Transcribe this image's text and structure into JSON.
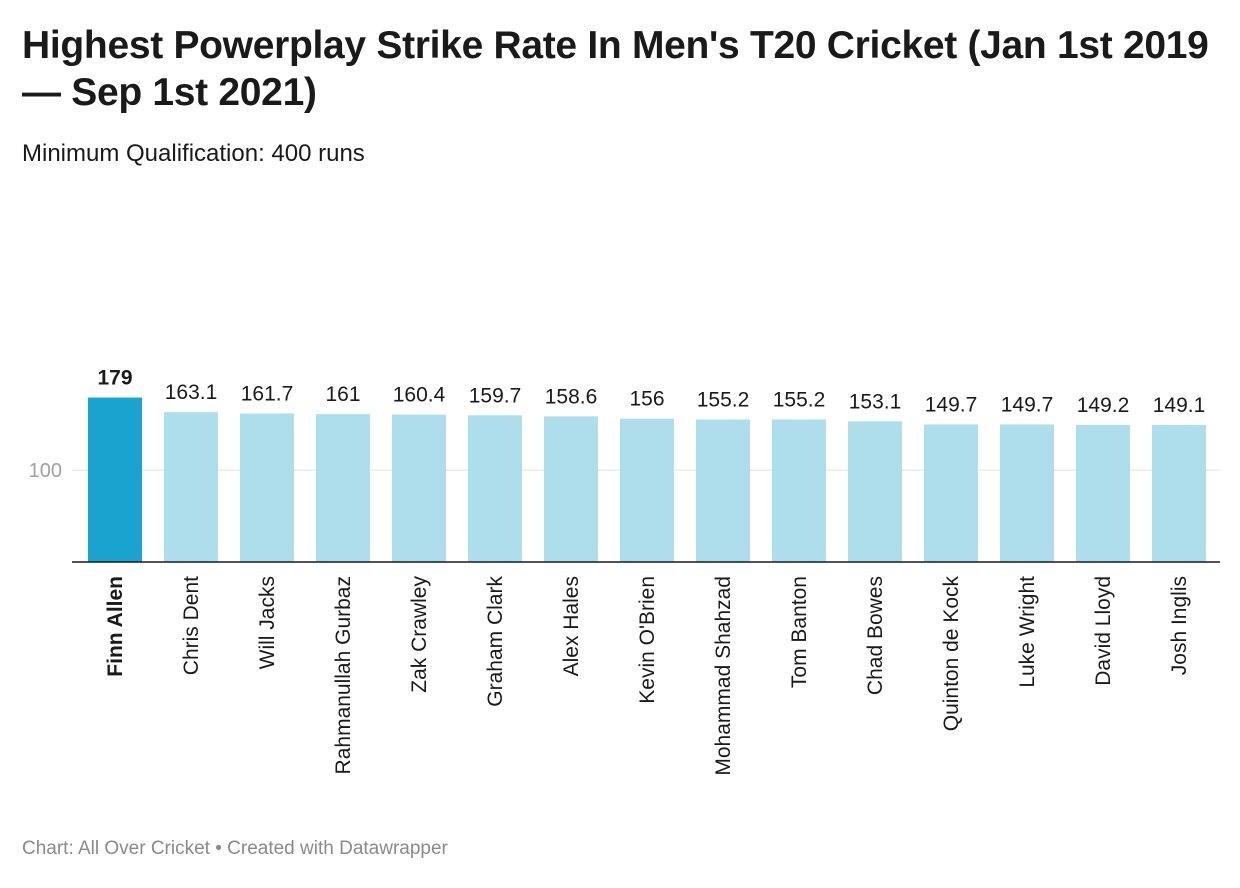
{
  "title": "Highest Powerplay Strike Rate In Men's T20 Cricket (Jan 1st 2019 — Sep 1st 2021)",
  "subtitle": "Minimum Qualification: 400 runs",
  "footer": {
    "source": "Chart: All Over Cricket",
    "separator": "•",
    "credit": "Created with Datawrapper"
  },
  "colors": {
    "highlight_bar": "#1aa3cf",
    "bar": "#aedeec",
    "grid": "#e2e2e2",
    "axis": "#1a1a1a",
    "tick_label": "#a0a0a0"
  },
  "chart_data": {
    "type": "bar",
    "categories": [
      "Finn Allen",
      "Chris Dent",
      "Will Jacks",
      "Rahmanullah Gurbaz",
      "Zak Crawley",
      "Graham Clark",
      "Alex Hales",
      "Kevin O'Brien",
      "Mohammad Shahzad",
      "Tom Banton",
      "Chad Bowes",
      "Quinton de Kock",
      "Luke Wright",
      "David Lloyd",
      "Josh Inglis"
    ],
    "values": [
      179,
      163.1,
      161.7,
      161,
      160.4,
      159.7,
      158.6,
      156,
      155.2,
      155.2,
      153.1,
      149.7,
      149.7,
      149.2,
      149.1
    ],
    "value_labels": [
      "179",
      "163.1",
      "161.7",
      "161",
      "160.4",
      "159.7",
      "158.6",
      "156",
      "155.2",
      "155.2",
      "153.1",
      "149.7",
      "149.7",
      "149.2",
      "149.1"
    ],
    "highlighted": [
      "Finn Allen"
    ],
    "y_ticks": [
      100
    ],
    "y_tick_labels": [
      "100"
    ],
    "ylim": [
      0,
      200
    ],
    "grid": true,
    "xlabel": "",
    "ylabel": ""
  }
}
